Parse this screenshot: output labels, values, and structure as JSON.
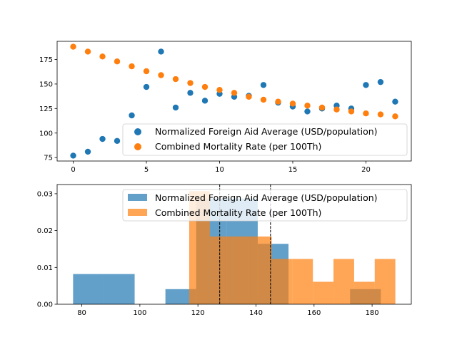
{
  "colors": {
    "series1": "#1f77b4",
    "series2": "#ff7f0e"
  },
  "chart_data": [
    {
      "type": "scatter",
      "legend_placement": "lower-right",
      "xlim": [
        -1.1,
        23.1
      ],
      "ylim": [
        71.5,
        193.5
      ],
      "xticks": [
        0,
        5,
        10,
        15,
        20
      ],
      "yticks": [
        75,
        100,
        125,
        150,
        175
      ],
      "grid": false,
      "series": [
        {
          "name": "Normalized Foreign Aid Average (USD/population)",
          "color": "#1f77b4",
          "x": [
            0,
            1,
            2,
            3,
            4,
            5,
            6,
            7,
            8,
            9,
            10,
            11,
            12,
            13,
            14,
            15,
            16,
            17,
            18,
            19,
            20,
            21,
            22
          ],
          "y": [
            77,
            81,
            94,
            92,
            118,
            147,
            183,
            126,
            141,
            133,
            140,
            137,
            138,
            149,
            131,
            127,
            122,
            125,
            128,
            125,
            149,
            152,
            132
          ]
        },
        {
          "name": "Combined Mortality Rate (per 100Th)",
          "color": "#ff7f0e",
          "x": [
            0,
            1,
            2,
            3,
            4,
            5,
            6,
            7,
            8,
            9,
            10,
            11,
            12,
            13,
            14,
            15,
            16,
            17,
            18,
            19,
            20,
            21,
            22
          ],
          "y": [
            188,
            183,
            178,
            173,
            168,
            163,
            159,
            155,
            151,
            147,
            144,
            141,
            137,
            134,
            132,
            130,
            128,
            126,
            124,
            122,
            120,
            119,
            117
          ]
        }
      ]
    },
    {
      "type": "histogram",
      "legend_placement": "upper-right",
      "xlim": [
        71.5,
        193.5
      ],
      "ylim": [
        0,
        0.0325
      ],
      "xticks": [
        80,
        100,
        120,
        140,
        160,
        180
      ],
      "yticks": [
        0.0,
        0.01,
        0.02,
        0.03
      ],
      "ytick_labels": [
        "0.00",
        "0.01",
        "0.02",
        "0.03"
      ],
      "grid": false,
      "vlines": [
        127.5,
        145
      ],
      "series": [
        {
          "name": "Normalized Foreign Aid Average (USD/population)",
          "color": "#1f77b4",
          "bins": [
            {
              "x0": 77.0,
              "x1": 87.6,
              "density": 0.0082
            },
            {
              "x0": 87.6,
              "x1": 98.2,
              "density": 0.0082
            },
            {
              "x0": 98.2,
              "x1": 108.8,
              "density": 0.0
            },
            {
              "x0": 108.8,
              "x1": 119.4,
              "density": 0.0041
            },
            {
              "x0": 119.4,
              "x1": 130.0,
              "density": 0.0287
            },
            {
              "x0": 130.0,
              "x1": 140.6,
              "density": 0.0287
            },
            {
              "x0": 140.6,
              "x1": 151.2,
              "density": 0.0164
            },
            {
              "x0": 151.2,
              "x1": 161.8,
              "density": 0.0
            },
            {
              "x0": 161.8,
              "x1": 172.4,
              "density": 0.0
            },
            {
              "x0": 172.4,
              "x1": 183.0,
              "density": 0.0041
            }
          ]
        },
        {
          "name": "Combined Mortality Rate (per 100Th)",
          "color": "#ff7f0e",
          "bins": [
            {
              "x0": 117.0,
              "x1": 124.1,
              "density": 0.0307
            },
            {
              "x0": 124.1,
              "x1": 131.2,
              "density": 0.0184
            },
            {
              "x0": 131.2,
              "x1": 138.3,
              "density": 0.0184
            },
            {
              "x0": 138.3,
              "x1": 145.4,
              "density": 0.0184
            },
            {
              "x0": 145.4,
              "x1": 152.5,
              "density": 0.0123
            },
            {
              "x0": 152.5,
              "x1": 159.6,
              "density": 0.0123
            },
            {
              "x0": 159.6,
              "x1": 166.7,
              "density": 0.0061
            },
            {
              "x0": 166.7,
              "x1": 173.8,
              "density": 0.0123
            },
            {
              "x0": 173.8,
              "x1": 180.9,
              "density": 0.0061
            },
            {
              "x0": 180.9,
              "x1": 188.0,
              "density": 0.0123
            }
          ]
        }
      ]
    }
  ]
}
